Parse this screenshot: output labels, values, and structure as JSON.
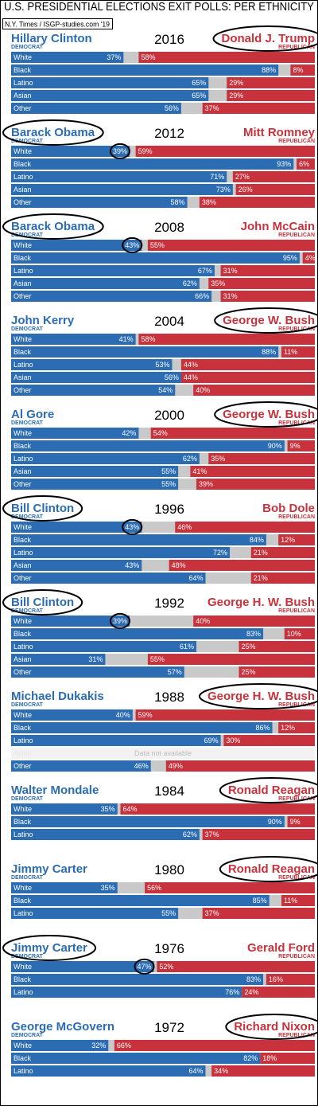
{
  "header": {
    "title": "U.S. PRESIDENTIAL ELECTIONS EXIT POLLS: PER ETHNICITY",
    "source": "N.Y. Times / ISGP-studies.com '19"
  },
  "chart_data": [
    {
      "type": "bar",
      "title": "2016",
      "xlim": [
        0,
        100
      ],
      "categories": [
        "White",
        "Black",
        "Latino",
        "Asian",
        "Other"
      ],
      "series": [
        {
          "name": "Hillary Clinton",
          "party": "DEMOCRAT",
          "color": "#2b6cb3",
          "values": [
            37,
            88,
            65,
            65,
            56
          ],
          "value_labels": [
            "37%",
            "88%",
            "65%",
            "65%",
            "56%"
          ]
        },
        {
          "name": "Donald J. Trump",
          "party": "REPUBLICAN",
          "color": "#c8323c",
          "values": [
            58,
            8,
            29,
            29,
            37
          ],
          "value_labels": [
            "58%",
            "8%",
            "29%",
            "29%",
            "37%"
          ]
        }
      ]
    },
    {
      "type": "bar",
      "title": "2012",
      "xlim": [
        0,
        100
      ],
      "categories": [
        "White",
        "Black",
        "Latino",
        "Asian",
        "Other"
      ],
      "series": [
        {
          "name": "Barack Obama",
          "party": "DEMOCRAT",
          "color": "#2b6cb3",
          "values": [
            39,
            93,
            71,
            73,
            58
          ],
          "value_labels": [
            "39%",
            "93%",
            "71%",
            "73%",
            "58%"
          ]
        },
        {
          "name": "Mitt Romney",
          "party": "REPUBLICAN",
          "color": "#c8323c",
          "values": [
            59,
            6,
            27,
            26,
            38
          ],
          "value_labels": [
            "59%",
            "6%",
            "27%",
            "26%",
            "38%"
          ]
        }
      ]
    },
    {
      "type": "bar",
      "title": "2008",
      "xlim": [
        0,
        100
      ],
      "categories": [
        "White",
        "Black",
        "Latino",
        "Asian",
        "Other"
      ],
      "series": [
        {
          "name": "Barack Obama",
          "party": "DEMOCRAT",
          "color": "#2b6cb3",
          "values": [
            43,
            95,
            67,
            62,
            66
          ],
          "value_labels": [
            "43%",
            "95%",
            "67%",
            "62%",
            "66%"
          ]
        },
        {
          "name": "John McCain",
          "party": "REPUBLICAN",
          "color": "#c8323c",
          "values": [
            55,
            4,
            31,
            35,
            31
          ],
          "value_labels": [
            "55%",
            "4%",
            "31%",
            "35%",
            "31%"
          ]
        }
      ]
    },
    {
      "type": "bar",
      "title": "2004",
      "xlim": [
        0,
        100
      ],
      "categories": [
        "White",
        "Black",
        "Latino",
        "Asian",
        "Other"
      ],
      "series": [
        {
          "name": "John Kerry",
          "party": "DEMOCRAT",
          "color": "#2b6cb3",
          "values": [
            41,
            88,
            53,
            56,
            54
          ],
          "value_labels": [
            "41%",
            "88%",
            "53%",
            "56%",
            "54%"
          ]
        },
        {
          "name": "George W. Bush",
          "party": "REPUBLICAN",
          "color": "#c8323c",
          "values": [
            58,
            11,
            44,
            44,
            40
          ],
          "value_labels": [
            "58%",
            "11%",
            "44%",
            "44%",
            "40%"
          ]
        }
      ]
    },
    {
      "type": "bar",
      "title": "2000",
      "xlim": [
        0,
        100
      ],
      "categories": [
        "White",
        "Black",
        "Latino",
        "Asian",
        "Other"
      ],
      "series": [
        {
          "name": "Al Gore",
          "party": "DEMOCRAT",
          "color": "#2b6cb3",
          "values": [
            42,
            90,
            62,
            55,
            55
          ],
          "value_labels": [
            "42%",
            "90%",
            "62%",
            "55%",
            "55%"
          ]
        },
        {
          "name": "George W. Bush",
          "party": "REPUBLICAN",
          "color": "#c8323c",
          "values": [
            54,
            9,
            35,
            41,
            39
          ],
          "value_labels": [
            "54%",
            "9%",
            "35%",
            "41%",
            "39%"
          ]
        }
      ]
    },
    {
      "type": "bar",
      "title": "1996",
      "xlim": [
        0,
        100
      ],
      "categories": [
        "White",
        "Black",
        "Latino",
        "Asian",
        "Other"
      ],
      "series": [
        {
          "name": "Bill Clinton",
          "party": "DEMOCRAT",
          "color": "#2b6cb3",
          "values": [
            43,
            84,
            72,
            43,
            64
          ],
          "value_labels": [
            "43%",
            "84%",
            "72%",
            "43%",
            "64%"
          ]
        },
        {
          "name": "Bob Dole",
          "party": "REPUBLICAN",
          "color": "#c8323c",
          "values": [
            46,
            12,
            21,
            48,
            21
          ],
          "value_labels": [
            "46%",
            "12%",
            "21%",
            "48%",
            "21%"
          ]
        }
      ]
    },
    {
      "type": "bar",
      "title": "1992",
      "xlim": [
        0,
        100
      ],
      "categories": [
        "White",
        "Black",
        "Latino",
        "Asian",
        "Other"
      ],
      "series": [
        {
          "name": "Bill Clinton",
          "party": "DEMOCRAT",
          "color": "#2b6cb3",
          "values": [
            39,
            83,
            61,
            31,
            57
          ],
          "value_labels": [
            "39%",
            "83%",
            "61%",
            "31%",
            "57%"
          ]
        },
        {
          "name": "George H. W. Bush",
          "party": "REPUBLICAN",
          "color": "#c8323c",
          "values": [
            40,
            10,
            25,
            55,
            25
          ],
          "value_labels": [
            "40%",
            "10%",
            "25%",
            "55%",
            "25%"
          ]
        }
      ]
    },
    {
      "type": "bar",
      "title": "1988",
      "xlim": [
        0,
        100
      ],
      "categories": [
        "White",
        "Black",
        "Latino",
        "Asian",
        "Other"
      ],
      "note": "Data not available",
      "series": [
        {
          "name": "Michael Dukakis",
          "party": "DEMOCRAT",
          "color": "#2b6cb3",
          "values": [
            40,
            86,
            69,
            null,
            46
          ],
          "value_labels": [
            "40%",
            "86%",
            "69%",
            null,
            "46%"
          ]
        },
        {
          "name": "George H. W. Bush",
          "party": "REPUBLICAN",
          "color": "#c8323c",
          "values": [
            59,
            12,
            30,
            null,
            49
          ],
          "value_labels": [
            "59%",
            "12%",
            "30%",
            null,
            "49%"
          ]
        }
      ]
    },
    {
      "type": "bar",
      "title": "1984",
      "xlim": [
        0,
        100
      ],
      "categories": [
        "White",
        "Black",
        "Latino"
      ],
      "series": [
        {
          "name": "Walter Mondale",
          "party": "DEMOCRAT",
          "color": "#2b6cb3",
          "values": [
            35,
            90,
            62
          ],
          "value_labels": [
            "35%",
            "90%",
            "62%"
          ]
        },
        {
          "name": "Ronald Reagan",
          "party": "REPUBLICAN",
          "color": "#c8323c",
          "values": [
            64,
            9,
            37
          ],
          "value_labels": [
            "64%",
            "9%",
            "37%"
          ]
        }
      ]
    },
    {
      "type": "bar",
      "title": "1980",
      "xlim": [
        0,
        100
      ],
      "categories": [
        "White",
        "Black",
        "Latino"
      ],
      "series": [
        {
          "name": "Jimmy Carter",
          "party": "DEMOCRAT",
          "color": "#2b6cb3",
          "values": [
            35,
            85,
            55
          ],
          "value_labels": [
            "35%",
            "85%",
            "55%"
          ]
        },
        {
          "name": "Ronald Reagan",
          "party": "REPUBLICAN",
          "color": "#c8323c",
          "values": [
            56,
            11,
            37
          ],
          "value_labels": [
            "56%",
            "11%",
            "37%"
          ]
        }
      ]
    },
    {
      "type": "bar",
      "title": "1976",
      "xlim": [
        0,
        100
      ],
      "categories": [
        "White",
        "Black",
        "Latino"
      ],
      "series": [
        {
          "name": "Jimmy Carter",
          "party": "DEMOCRAT",
          "color": "#2b6cb3",
          "values": [
            47,
            83,
            76
          ],
          "value_labels": [
            "47%",
            "83%",
            "76%"
          ]
        },
        {
          "name": "Gerald Ford",
          "party": "REPUBLICAN",
          "color": "#c8323c",
          "values": [
            52,
            16,
            24
          ],
          "value_labels": [
            "52%",
            "16%",
            "24%"
          ]
        }
      ]
    },
    {
      "type": "bar",
      "title": "1972",
      "xlim": [
        0,
        100
      ],
      "categories": [
        "White",
        "Black",
        "Latino"
      ],
      "series": [
        {
          "name": "George McGovern",
          "party": "DEMOCRAT",
          "color": "#2b6cb3",
          "values": [
            32,
            82,
            64
          ],
          "value_labels": [
            "32%",
            "82%",
            "64%"
          ]
        },
        {
          "name": "Richard Nixon",
          "party": "REPUBLICAN",
          "color": "#c8323c",
          "values": [
            66,
            18,
            34
          ],
          "value_labels": [
            "66%",
            "18%",
            "34%"
          ]
        }
      ]
    }
  ]
}
